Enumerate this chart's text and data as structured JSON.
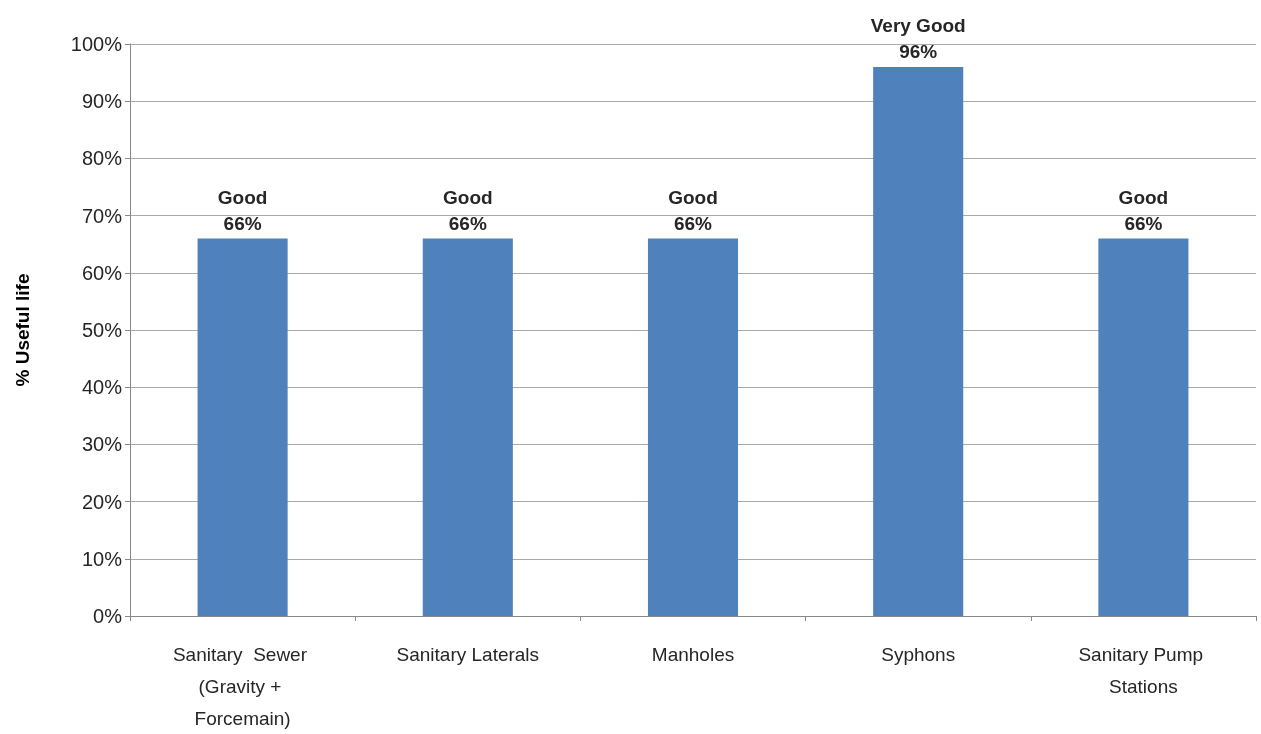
{
  "chart_data": {
    "type": "bar",
    "ylabel": "% Useful life",
    "categories": [
      "Sanitary  Sewer (Gravity + Forcemain)",
      "Sanitary Laterals",
      "Manholes",
      "Syphons",
      "Sanitary Pump Stations"
    ],
    "values": [
      66,
      66,
      66,
      96,
      66
    ],
    "value_labels": [
      "Good\n66%",
      "Good\n66%",
      "Good\n66%",
      "Very Good\n96%",
      "Good\n66%"
    ],
    "color": "#4f81bd",
    "ylim": [
      0,
      100
    ],
    "yticks": [
      {
        "value": 0,
        "label": "0%"
      },
      {
        "value": 10,
        "label": "10%"
      },
      {
        "value": 20,
        "label": "20%"
      },
      {
        "value": 30,
        "label": "30%"
      },
      {
        "value": 40,
        "label": "40%"
      },
      {
        "value": 50,
        "label": "50%"
      },
      {
        "value": 60,
        "label": "60%"
      },
      {
        "value": 70,
        "label": "70%"
      },
      {
        "value": 80,
        "label": "80%"
      },
      {
        "value": 90,
        "label": "90%"
      },
      {
        "value": 100,
        "label": "100%"
      }
    ],
    "grid": "y"
  }
}
